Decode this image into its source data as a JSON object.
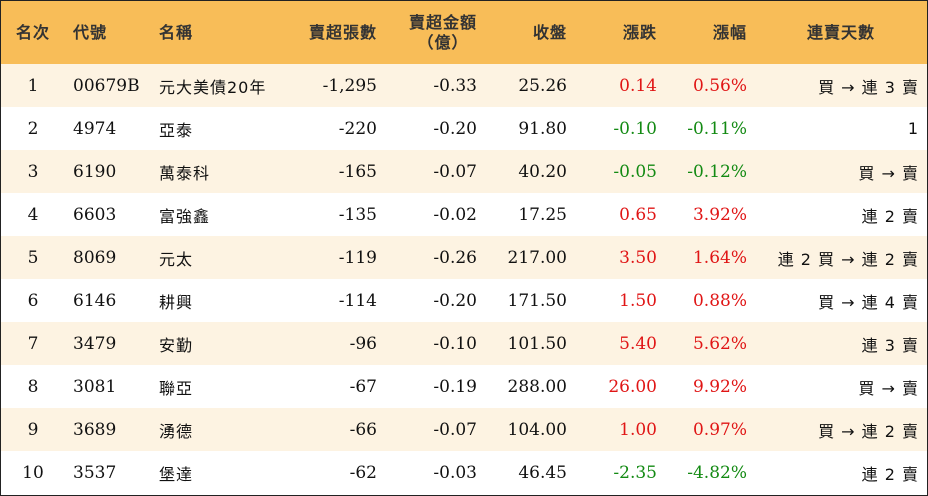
{
  "header": {
    "rank": "名次",
    "code": "代號",
    "name": "名稱",
    "net_sell_lots": "賣超張數",
    "net_sell_amount_line1": "賣超金額",
    "net_sell_amount_line2": "（億）",
    "close": "收盤",
    "change": "漲跌",
    "pct": "漲幅",
    "streak": "連賣天數"
  },
  "rows": [
    {
      "rank": "1",
      "code": "00679B",
      "name": "元大美債20年",
      "lots": "-1,295",
      "amount": "-0.33",
      "close": "25.26",
      "change": "0.14",
      "pct": "0.56%",
      "dir": "up",
      "streak": "買 → 連 3 賣"
    },
    {
      "rank": "2",
      "code": "4974",
      "name": "亞泰",
      "lots": "-220",
      "amount": "-0.20",
      "close": "91.80",
      "change": "-0.10",
      "pct": "-0.11%",
      "dir": "down",
      "streak": "1"
    },
    {
      "rank": "3",
      "code": "6190",
      "name": "萬泰科",
      "lots": "-165",
      "amount": "-0.07",
      "close": "40.20",
      "change": "-0.05",
      "pct": "-0.12%",
      "dir": "down",
      "streak": "買 → 賣"
    },
    {
      "rank": "4",
      "code": "6603",
      "name": "富強鑫",
      "lots": "-135",
      "amount": "-0.02",
      "close": "17.25",
      "change": "0.65",
      "pct": "3.92%",
      "dir": "up",
      "streak": "連 2 賣"
    },
    {
      "rank": "5",
      "code": "8069",
      "name": "元太",
      "lots": "-119",
      "amount": "-0.26",
      "close": "217.00",
      "change": "3.50",
      "pct": "1.64%",
      "dir": "up",
      "streak": "連 2 買 → 連 2 賣"
    },
    {
      "rank": "6",
      "code": "6146",
      "name": "耕興",
      "lots": "-114",
      "amount": "-0.20",
      "close": "171.50",
      "change": "1.50",
      "pct": "0.88%",
      "dir": "up",
      "streak": "買 → 連 4 賣"
    },
    {
      "rank": "7",
      "code": "3479",
      "name": "安勤",
      "lots": "-96",
      "amount": "-0.10",
      "close": "101.50",
      "change": "5.40",
      "pct": "5.62%",
      "dir": "up",
      "streak": "連 3 賣"
    },
    {
      "rank": "8",
      "code": "3081",
      "name": "聯亞",
      "lots": "-67",
      "amount": "-0.19",
      "close": "288.00",
      "change": "26.00",
      "pct": "9.92%",
      "dir": "up",
      "streak": "買 → 賣"
    },
    {
      "rank": "9",
      "code": "3689",
      "name": "湧德",
      "lots": "-66",
      "amount": "-0.07",
      "close": "104.00",
      "change": "1.00",
      "pct": "0.97%",
      "dir": "up",
      "streak": "買 → 連 2 賣"
    },
    {
      "rank": "10",
      "code": "3537",
      "name": "堡達",
      "lots": "-62",
      "amount": "-0.03",
      "close": "46.45",
      "change": "-2.35",
      "pct": "-4.82%",
      "dir": "down",
      "streak": "連 2 賣"
    }
  ],
  "colors": {
    "header_bg": "#f8bd58",
    "row_alt_bg": "#fdf3e2",
    "up": "#e01515",
    "down": "#138a13"
  }
}
